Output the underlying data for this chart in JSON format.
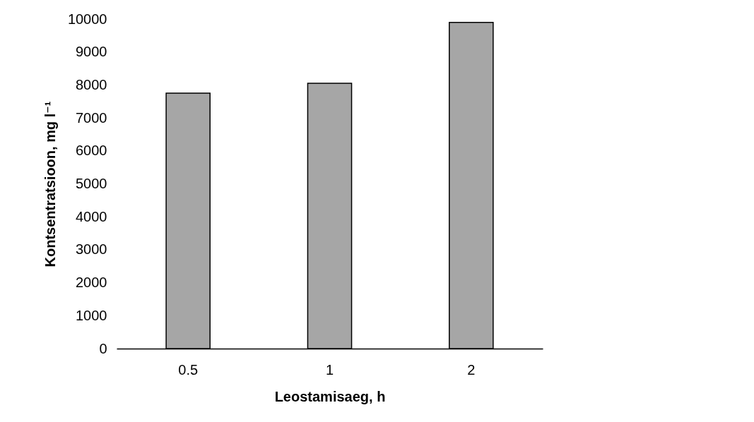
{
  "chart_data": {
    "type": "bar",
    "xlabel": "Leostamisaeg, h",
    "ylabel": "Kontsentratsioon, mg l⁻¹",
    "categories": [
      "0.5",
      "1",
      "2"
    ],
    "series": [
      {
        "color": "#a6a6a6",
        "values": [
          7750,
          8050,
          9900
        ]
      }
    ],
    "ylim": [
      0,
      10000
    ],
    "yticks": [
      0,
      1000,
      2000,
      3000,
      4000,
      5000,
      6000,
      7000,
      8000,
      9000,
      10000
    ],
    "grid": false,
    "legend": false
  }
}
